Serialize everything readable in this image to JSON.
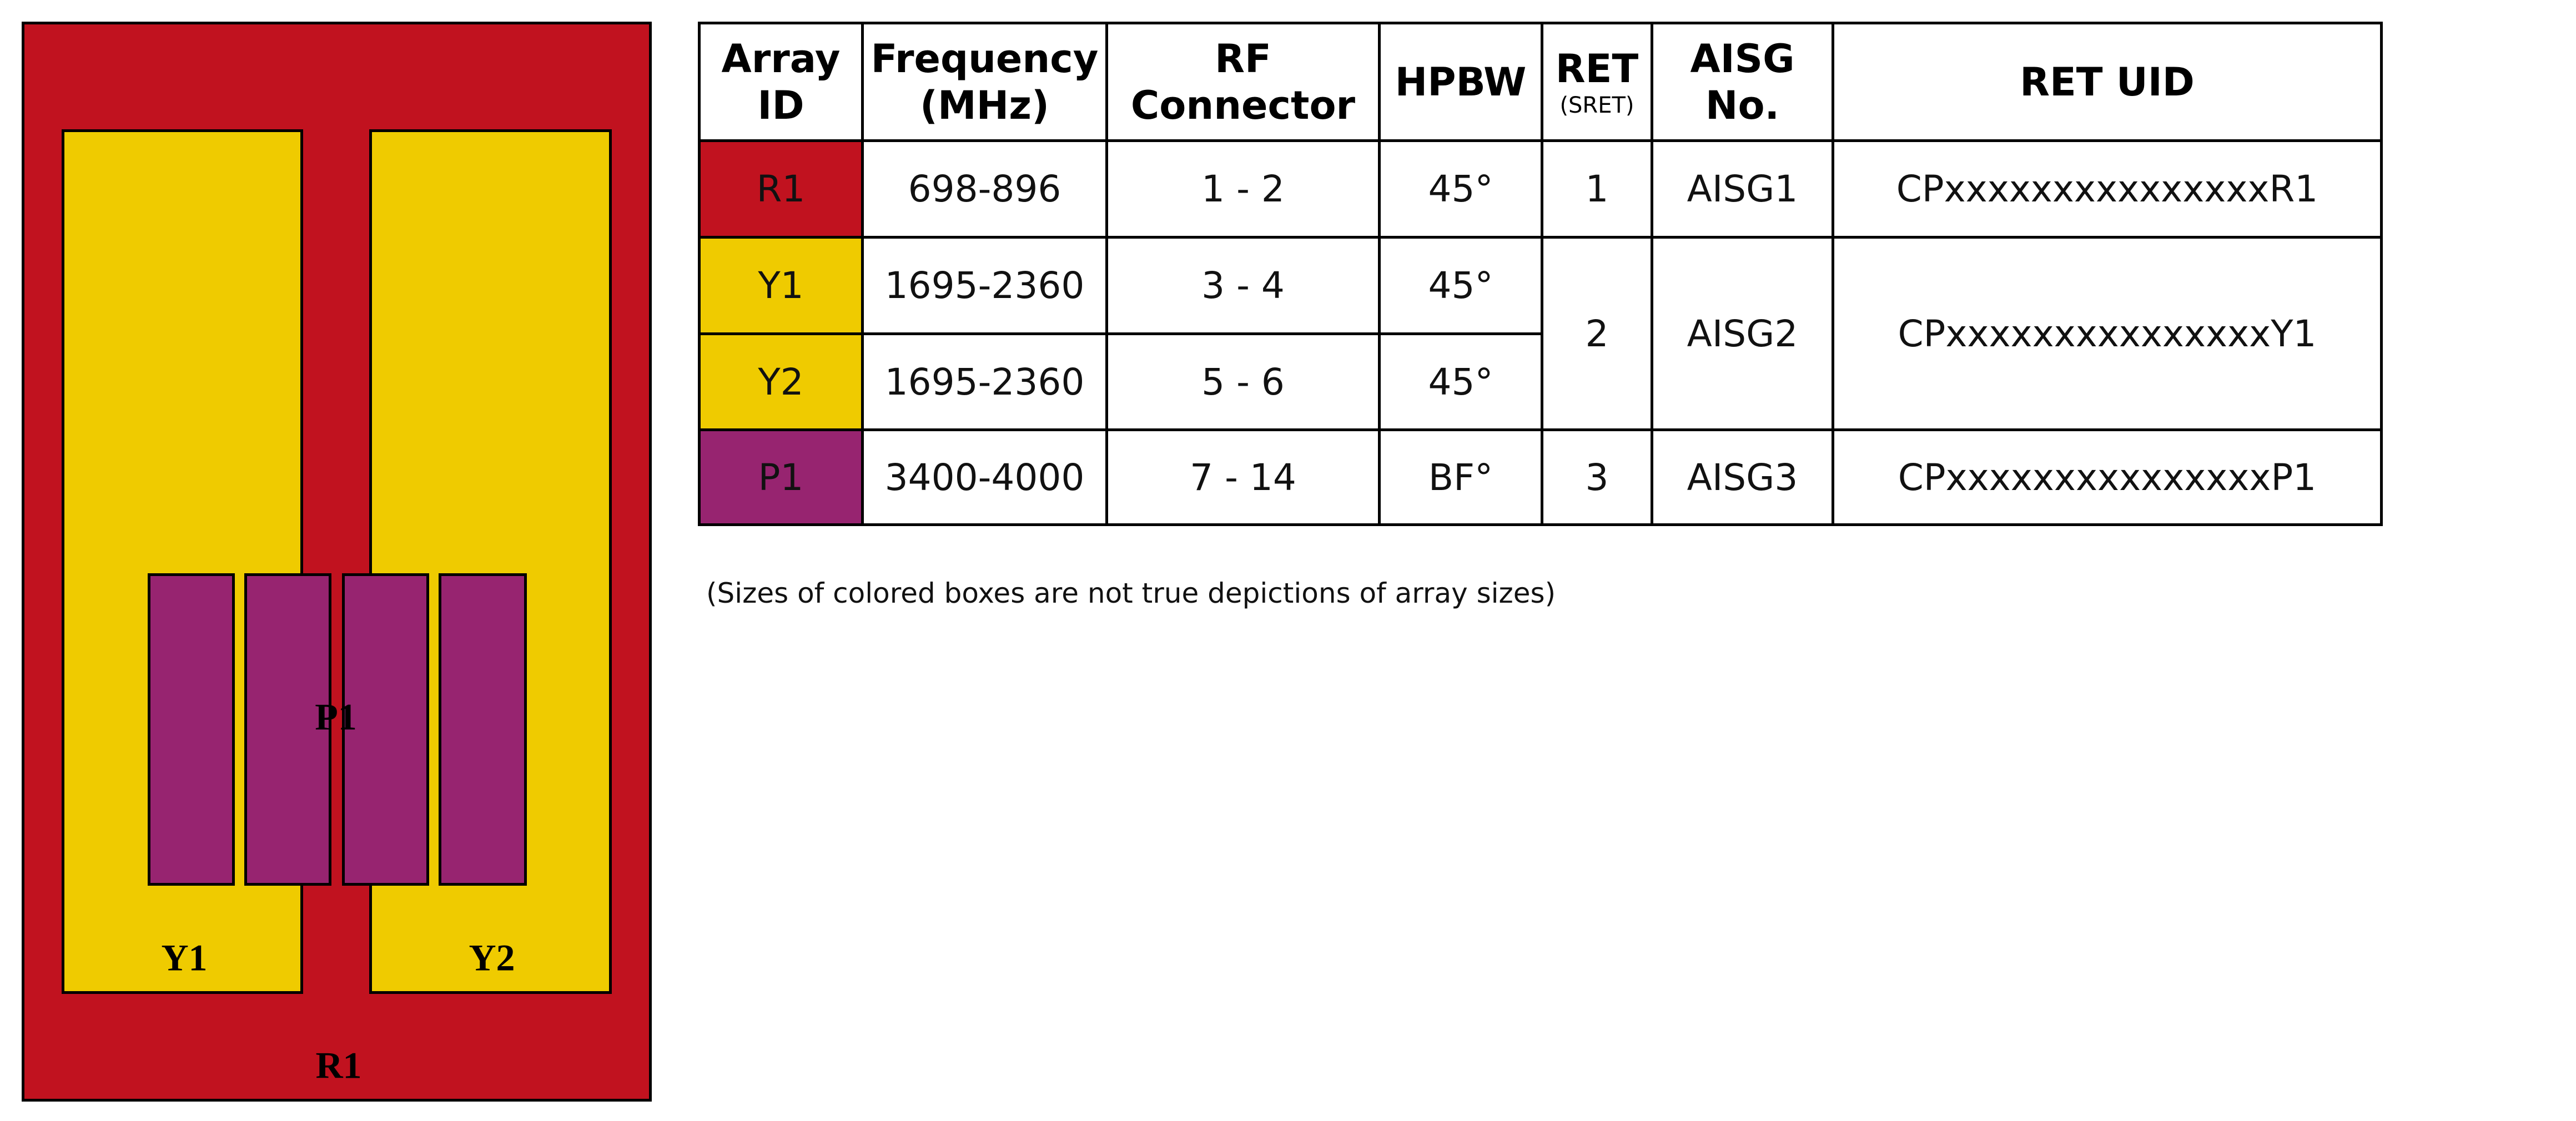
{
  "colors": {
    "red": "#C1121F",
    "yellow": "#EFCB00",
    "purple": "#972470"
  },
  "diagram": {
    "labels": {
      "r1": "R1",
      "y1": "Y1",
      "y2": "Y2",
      "p1": "P1"
    }
  },
  "table": {
    "headers": {
      "array_id": "Array ID",
      "frequency": "Frequency",
      "frequency_unit": "(MHz)",
      "rf_connector": "RF Connector",
      "hpbw": "HPBW",
      "ret": "RET",
      "ret_sub": "(SRET)",
      "aisg": "AISG No.",
      "ret_uid": "RET UID"
    },
    "rows": [
      {
        "id": "R1",
        "freq": "698-896",
        "rf": "1 - 2",
        "hpbw": "45°",
        "ret": "1",
        "aisg": "AISG1",
        "uid": "CPxxxxxxxxxxxxxxxR1"
      },
      {
        "id": "Y1",
        "freq": "1695-2360",
        "rf": "3 - 4",
        "hpbw": "45°",
        "ret": "2",
        "aisg": "AISG2",
        "uid": "CPxxxxxxxxxxxxxxxY1"
      },
      {
        "id": "Y2",
        "freq": "1695-2360",
        "rf": "5 - 6",
        "hpbw": "45°"
      },
      {
        "id": "P1",
        "freq": "3400-4000",
        "rf": "7 - 14",
        "hpbw": "BF°",
        "ret": "3",
        "aisg": "AISG3",
        "uid": "CPxxxxxxxxxxxxxxxP1"
      }
    ]
  },
  "note": "(Sizes of colored boxes are not true depictions of array sizes)"
}
